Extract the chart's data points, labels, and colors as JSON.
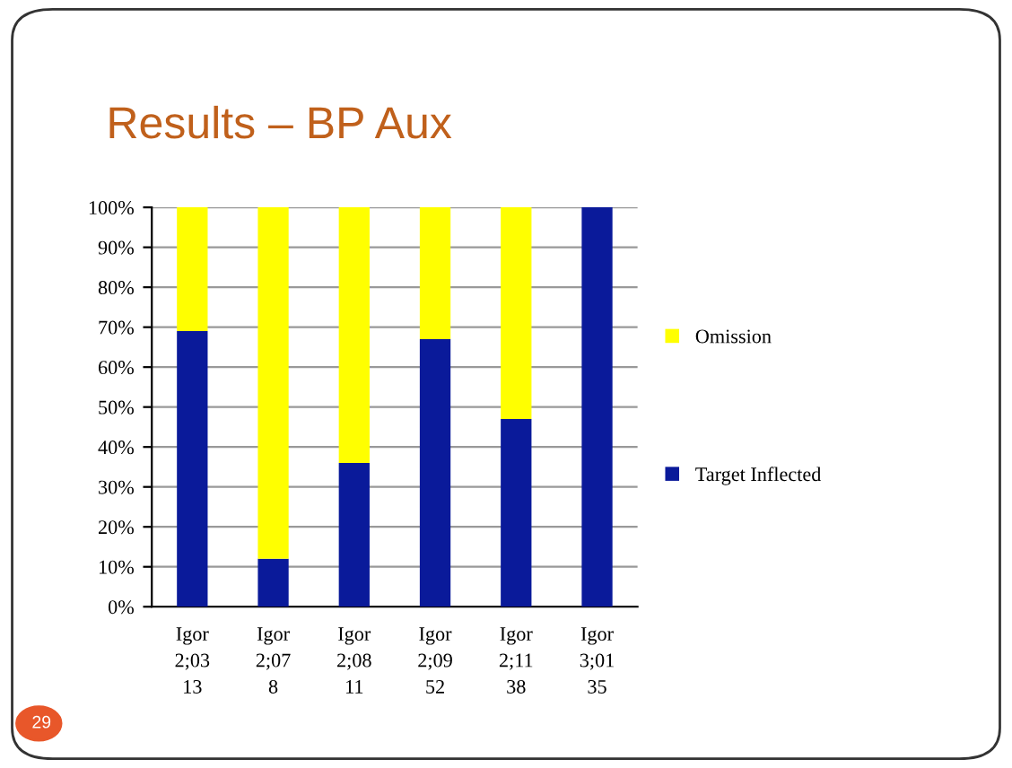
{
  "chart_data": {
    "type": "bar",
    "title": "Results – BP Aux",
    "stacked": true,
    "categories": [
      "Igor\n2;03\n13",
      "Igor\n2;07\n8",
      "Igor\n2;08\n11",
      "Igor\n2;09\n52",
      "Igor\n2;11\n38",
      "Igor\n3;01\n35"
    ],
    "series": [
      {
        "name": "Target Inflected",
        "color": "#0a1a9a",
        "values": [
          69,
          12,
          36,
          67,
          47,
          100
        ]
      },
      {
        "name": "Omission",
        "color": "#ffff00",
        "values": [
          31,
          88,
          64,
          33,
          53,
          0
        ]
      }
    ],
    "ylim": [
      0,
      100
    ],
    "yticks": [
      {
        "value": 0,
        "label": "0%"
      },
      {
        "value": 10,
        "label": "10%"
      },
      {
        "value": 20,
        "label": "20%"
      },
      {
        "value": 30,
        "label": "30%"
      },
      {
        "value": 40,
        "label": "40%"
      },
      {
        "value": 50,
        "label": "50%"
      },
      {
        "value": 60,
        "label": "60%"
      },
      {
        "value": 70,
        "label": "70%"
      },
      {
        "value": 80,
        "label": "80%"
      },
      {
        "value": 90,
        "label": "90%"
      },
      {
        "value": 100,
        "label": "100%"
      }
    ],
    "grid": "y",
    "legend": "right",
    "annotations": [
      "29"
    ]
  }
}
